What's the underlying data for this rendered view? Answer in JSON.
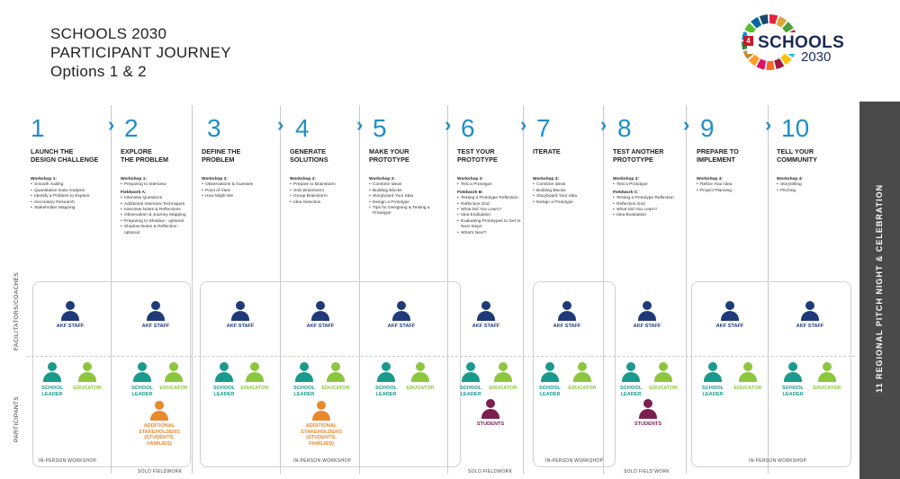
{
  "title": {
    "line1": "SCHOOLS 2030",
    "line2": "PARTICIPANT JOURNEY",
    "line3": "Options 1 & 2"
  },
  "logo": {
    "number": "4",
    "text": "SCHOOLS",
    "sub": "2030"
  },
  "side_labels": {
    "facilitators": "FACILITATORS/COACHES",
    "participants": "PARTICIPANTS"
  },
  "band_text": "11 REGIONAL  PITCH NIGHT & CELEBRATION",
  "steps": [
    {
      "num": "1",
      "title": "LAUNCH THE\nDESIGN CHALLENGE",
      "blocks": [
        {
          "h": "Workshop 1:",
          "items": [
            "Smooth Sailing",
            "Quantitative Data Analysis",
            "Identify a Problem to Explore",
            "Secondary Research",
            "Stakeholder Mapping"
          ]
        }
      ]
    },
    {
      "num": "2",
      "title": "EXPLORE\nTHE PROBLEM",
      "blocks": [
        {
          "h": "Workshop 1:",
          "items": [
            "Preparing to Interview"
          ]
        },
        {
          "h": "Fieldwork A:",
          "items": [
            "Interview Questions",
            "Additional Interview Techniques",
            "Interview Notes & Reflections",
            "Observation & Journey Mapping",
            "Preparing to Shadow - optional",
            "Shadow Notes & Reflection - optional"
          ]
        }
      ]
    },
    {
      "num": "3",
      "title": "DEFINE THE\nPROBLEM",
      "blocks": [
        {
          "h": "Workshop 2:",
          "items": [
            "Observations & Guesses",
            "Point of View",
            "How Might We"
          ]
        }
      ]
    },
    {
      "num": "4",
      "title": "GENERATE\nSOLUTIONS",
      "blocks": [
        {
          "h": "Workshop 2:",
          "items": [
            "Prepare to Brainstorm",
            "Solo Brainstorm",
            "Group Brainstorm",
            "Idea Selection"
          ]
        }
      ]
    },
    {
      "num": "5",
      "title": "MAKE YOUR\nPROTOTYPE",
      "blocks": [
        {
          "h": "Workshop 2:",
          "items": [
            "Combine Ideas",
            "Building Blocks",
            "Storyboard Your Idea",
            "Design a Prototype",
            "Tips for Designing & Testing a Prototype"
          ]
        }
      ]
    },
    {
      "num": "6",
      "title": "TEST YOUR\nPROTOTYPE",
      "blocks": [
        {
          "h": "Workshop 2:",
          "items": [
            "Test a Prototype"
          ]
        },
        {
          "h": "Fieldwork B:",
          "items": [
            "Testing a Prototype Reflection",
            "Reflection Grid",
            "What Did You Learn?",
            "Idea Evaluation",
            "Evaluating Prototypes to Get to Next Steps",
            "What's Next?"
          ]
        }
      ]
    },
    {
      "num": "7",
      "title": "ITERATE",
      "blocks": [
        {
          "h": "Workshop 3:",
          "items": [
            "Combine Ideas",
            "Building Blocks",
            "Storyboard Your Idea",
            "Design a Prototype"
          ]
        }
      ]
    },
    {
      "num": "8",
      "title": "TEST ANOTHER\nPROTOTYPE",
      "blocks": [
        {
          "h": "Workshop 3:",
          "items": [
            "Test a Prototype"
          ]
        },
        {
          "h": "Fieldwork C:",
          "items": [
            "Testing a Prototype Reflection",
            "Reflection Grid",
            "What Did You Learn?",
            "Idea Evaluation"
          ]
        }
      ]
    },
    {
      "num": "9",
      "title": "PREPARE TO\nIMPLEMENT",
      "blocks": [
        {
          "h": "Workshop 4:",
          "items": [
            "Refine Your Idea",
            "Project Planning"
          ]
        }
      ]
    },
    {
      "num": "10",
      "title": "TELL YOUR\nCOMMUNITY",
      "blocks": [
        {
          "h": "Workshop 4:",
          "items": [
            "Storytelling",
            "Pitching"
          ]
        }
      ]
    }
  ],
  "roles": {
    "akf_staff": "AKF STAFF",
    "school_leader": "SCHOOL\nLEADER",
    "educator": "EDUCATOR",
    "stakeholders": "ADDITIONAL\nSTAKEHOLDERS\n(STUDENTS,\nFAMILIES)",
    "students": "STUDENTS"
  },
  "footers": {
    "in_person_workshop": "IN-PERSON WORKSHOP",
    "solo_fieldwork_1": "SOLO FIELDWORK",
    "solo_fieldwork_2": "SOLO FIELDWORK",
    "solo_field_work": "SOLO FIELD WORK"
  },
  "colors": {
    "akf_staff": "#1f3a78",
    "school_leader": "#1a9a8c",
    "educator": "#8cc63f",
    "stakeholders": "#e8892c",
    "students": "#7a1f4f",
    "step_number": "#1e8fc8",
    "band": "#4a4a4a"
  }
}
